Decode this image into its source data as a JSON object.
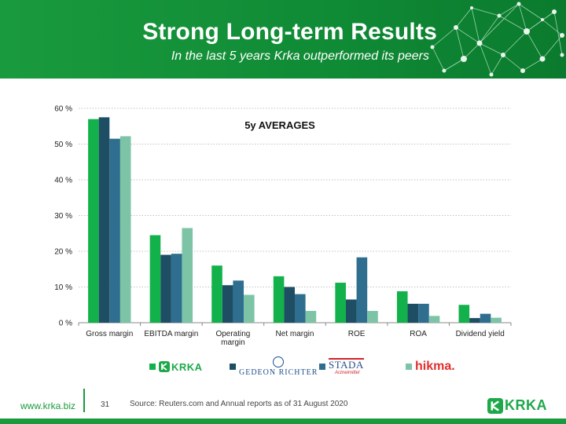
{
  "slide": {
    "title": "Strong Long-term Results",
    "subtitle": "In the last 5 years Krka outperformed its peers",
    "footer_url": "www.krka.biz",
    "page_number": "31",
    "source": "Source: Reuters.com and Annual reports as of 31 August 2020",
    "footer_logo_text": "KRKA"
  },
  "colors": {
    "banner": "#1a9a3e",
    "krka": "#13b14b",
    "richter": "#1d4e63",
    "stada": "#2f6e8e",
    "hikma": "#7dc4a6"
  },
  "legend": {
    "krka_text": "KRKA",
    "richter_text": "GEDEON RICHTER",
    "stada_text": "STADA",
    "stada_sub": "Arzneimittel",
    "hikma_text": "hikma."
  },
  "chart_data": {
    "type": "bar",
    "title": "5y AVERAGES",
    "xlabel": "",
    "ylabel": "",
    "ylim": [
      0,
      60
    ],
    "yticks": [
      "0 %",
      "10 %",
      "20 %",
      "30 %",
      "40 %",
      "50 %",
      "60 %"
    ],
    "grid": true,
    "categories": [
      "Gross margin",
      "EBITDA margin",
      "Operating margin",
      "Net margin",
      "ROE",
      "ROA",
      "Dividend yield"
    ],
    "category_lines": [
      [
        "Gross margin"
      ],
      [
        "EBITDA margin"
      ],
      [
        "Operating",
        "margin"
      ],
      [
        "Net margin"
      ],
      [
        "ROE"
      ],
      [
        "ROA"
      ],
      [
        "Dividend yield"
      ]
    ],
    "legend_position": "bottom",
    "series": [
      {
        "name": "KRKA",
        "color": "#13b14b",
        "values": [
          57.0,
          24.5,
          16.0,
          13.0,
          11.2,
          8.8,
          5.0
        ]
      },
      {
        "name": "GEDEON RICHTER",
        "color": "#1d4e63",
        "values": [
          57.5,
          19.0,
          10.5,
          10.0,
          6.5,
          5.3,
          1.3
        ]
      },
      {
        "name": "STADA",
        "color": "#2f6e8e",
        "values": [
          51.5,
          19.3,
          11.8,
          8.0,
          18.3,
          5.3,
          2.5
        ]
      },
      {
        "name": "hikma.",
        "color": "#7dc4a6",
        "values": [
          52.2,
          26.5,
          7.8,
          3.3,
          3.3,
          1.9,
          1.4
        ]
      }
    ]
  }
}
